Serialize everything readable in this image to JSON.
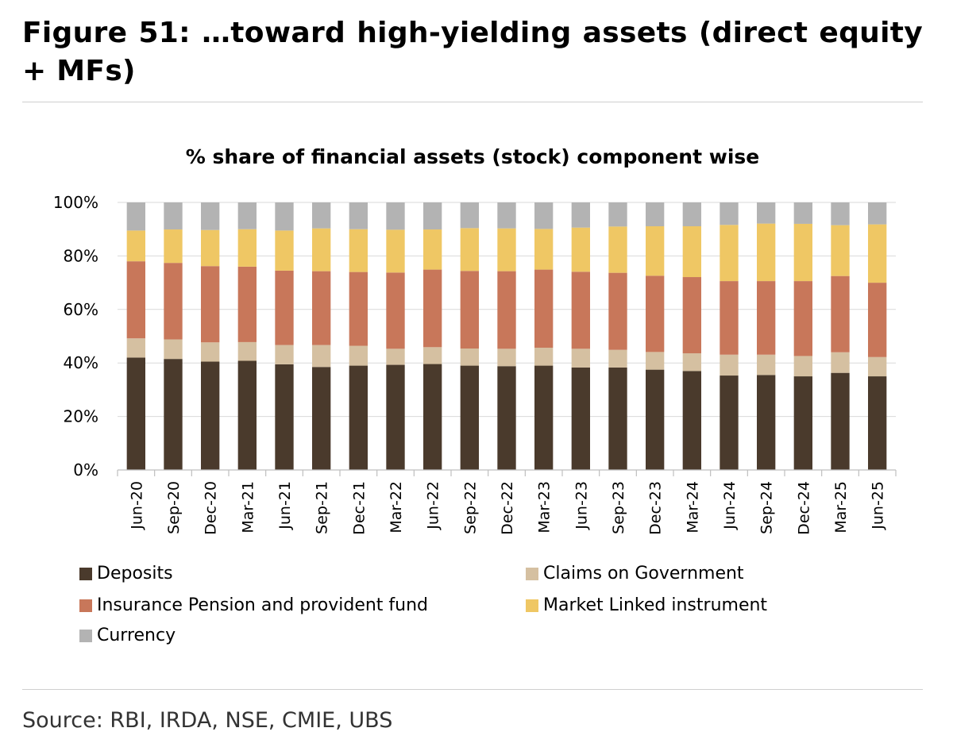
{
  "figure": {
    "title": "Figure 51: …toward high-yielding assets (direct equity + MFs)",
    "source": "Source: RBI, IRDA, NSE, CMIE, UBS"
  },
  "chart_data": {
    "type": "bar",
    "stacked": true,
    "title": "% share of financial assets (stock) component wise",
    "xlabel": "",
    "ylabel": "",
    "ylim": [
      0,
      100
    ],
    "yticks": [
      "0%",
      "20%",
      "40%",
      "60%",
      "80%",
      "100%"
    ],
    "grid": true,
    "legend_position": "bottom",
    "categories": [
      "Jun-20",
      "Sep-20",
      "Dec-20",
      "Mar-21",
      "Jun-21",
      "Sep-21",
      "Dec-21",
      "Mar-22",
      "Jun-22",
      "Sep-22",
      "Dec-22",
      "Mar-23",
      "Jun-23",
      "Sep-23",
      "Dec-23",
      "Mar-24",
      "Jun-24",
      "Sep-24",
      "Dec-24",
      "Mar-25",
      "Jun-25"
    ],
    "series": [
      {
        "name": "Deposits",
        "color": "#4a3a2c",
        "values": [
          42,
          41.5,
          40.5,
          40.8,
          39.5,
          38.5,
          39,
          39.3,
          39.6,
          39,
          38.8,
          39,
          38.3,
          38.3,
          37.5,
          37,
          35.3,
          35.5,
          35,
          36.3,
          35
        ]
      },
      {
        "name": "Claims on Government",
        "color": "#d5c0a1",
        "values": [
          7.2,
          7.3,
          7.2,
          7,
          7.2,
          8.2,
          7.4,
          6,
          6.3,
          6.4,
          6.5,
          6.7,
          7,
          6.6,
          6.6,
          6.6,
          7.8,
          7.6,
          7.6,
          7.7,
          7.2
        ]
      },
      {
        "name": "Insurance Pension and provident fund",
        "color": "#c8775a",
        "values": [
          28.8,
          28.6,
          28.5,
          28.2,
          27.8,
          27.6,
          27.6,
          28.5,
          29,
          29,
          29,
          29.2,
          28.8,
          28.8,
          28.5,
          28.5,
          27.5,
          27.5,
          28,
          28.5,
          27.8
        ]
      },
      {
        "name": "Market Linked instrument",
        "color": "#efc764",
        "values": [
          11.5,
          12.5,
          13.5,
          14,
          15,
          16,
          16,
          16,
          15,
          16,
          16,
          15.2,
          16.5,
          17.3,
          18.5,
          19,
          21,
          21.5,
          21.4,
          19,
          21.8
        ]
      },
      {
        "name": "Currency",
        "color": "#b3b3b3",
        "values": [
          10.5,
          10.1,
          10.3,
          10,
          10.5,
          9.7,
          10,
          10.2,
          10.1,
          9.6,
          9.7,
          9.9,
          9.4,
          9,
          8.9,
          8.9,
          8.4,
          7.9,
          8,
          8.5,
          8.2
        ]
      }
    ]
  }
}
